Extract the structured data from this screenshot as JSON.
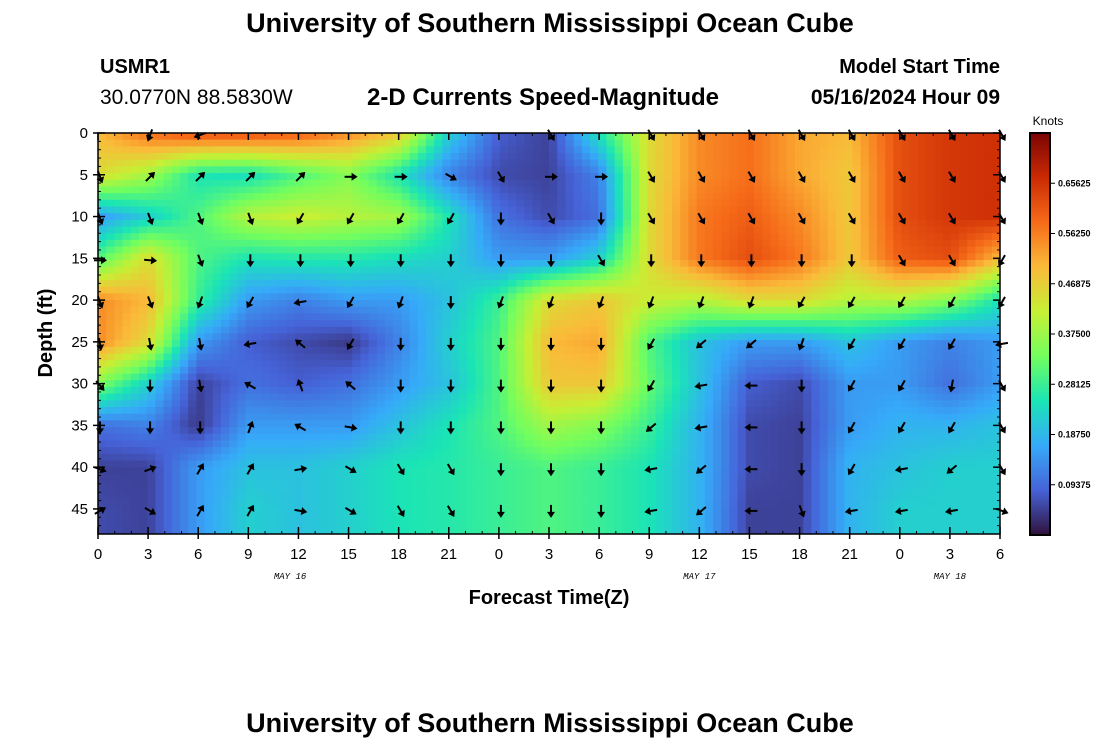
{
  "header": {
    "title": "University of Southern Mississippi Ocean Cube",
    "station_id": "USMR1",
    "coordinates": "30.0770N  88.5830W",
    "plot_title": "2-D Currents Speed-Magnitude",
    "model_start_label": "Model Start Time",
    "model_start_value": "05/16/2024 Hour 09"
  },
  "footer": {
    "title": "University of Southern Mississippi Ocean Cube"
  },
  "chart_data": {
    "type": "heatmap",
    "xlabel": "Forecast Time(Z)",
    "ylabel": "Depth (ft)",
    "x_ticks": [
      "0",
      "3",
      "6",
      "9",
      "12",
      "15",
      "18",
      "21",
      "0",
      "3",
      "6",
      "9",
      "12",
      "15",
      "18",
      "21",
      "0",
      "3",
      "6"
    ],
    "x_tick_hours": [
      0,
      3,
      6,
      9,
      12,
      15,
      18,
      21,
      24,
      27,
      30,
      33,
      36,
      39,
      42,
      45,
      48,
      51,
      54
    ],
    "xlim_hours": [
      0,
      54
    ],
    "date_labels": [
      {
        "text": "MAY 16",
        "hour": 11.5
      },
      {
        "text": "MAY 17",
        "hour": 36
      },
      {
        "text": "MAY 18",
        "hour": 51
      }
    ],
    "y_ticks": [
      0,
      5,
      10,
      15,
      20,
      25,
      30,
      35,
      40,
      45
    ],
    "ylim": [
      0,
      48
    ],
    "colorbar": {
      "label": "Knots",
      "ticks": [
        0.09375,
        0.1875,
        0.28125,
        0.375,
        0.46875,
        0.5625,
        0.65625
      ],
      "tick_labels": [
        "0.09375",
        "0.18750",
        "0.28125",
        "0.37500",
        "0.46875",
        "0.56250",
        "0.65625"
      ],
      "range": [
        0,
        0.75
      ],
      "colors": [
        "#30123b",
        "#4662d7",
        "#36aaf9",
        "#1ae4b6",
        "#72fe5e",
        "#c7ef34",
        "#faba39",
        "#f66b19",
        "#cb2a04",
        "#7a0403"
      ]
    },
    "speed_grid": {
      "x_hours": [
        0,
        3,
        6,
        9,
        12,
        15,
        18,
        21,
        24,
        27,
        30,
        33,
        36,
        39,
        42,
        45,
        48,
        51,
        54
      ],
      "depth_ft": [
        0,
        5,
        10,
        15,
        20,
        25,
        30,
        35,
        40,
        45
      ],
      "values": [
        [
          0.5,
          0.58,
          0.62,
          0.62,
          0.6,
          0.55,
          0.48,
          0.22,
          0.08,
          0.05,
          0.25,
          0.45,
          0.55,
          0.58,
          0.52,
          0.5,
          0.62,
          0.65,
          0.66
        ],
        [
          0.45,
          0.38,
          0.25,
          0.24,
          0.3,
          0.35,
          0.25,
          0.12,
          0.06,
          0.05,
          0.12,
          0.45,
          0.55,
          0.58,
          0.52,
          0.48,
          0.62,
          0.65,
          0.66
        ],
        [
          0.15,
          0.22,
          0.3,
          0.4,
          0.42,
          0.4,
          0.38,
          0.25,
          0.1,
          0.06,
          0.1,
          0.45,
          0.57,
          0.6,
          0.55,
          0.48,
          0.62,
          0.65,
          0.66
        ],
        [
          0.3,
          0.45,
          0.3,
          0.25,
          0.26,
          0.26,
          0.24,
          0.22,
          0.15,
          0.15,
          0.22,
          0.45,
          0.57,
          0.62,
          0.57,
          0.48,
          0.6,
          0.62,
          0.5
        ],
        [
          0.55,
          0.5,
          0.28,
          0.15,
          0.12,
          0.15,
          0.15,
          0.2,
          0.28,
          0.45,
          0.48,
          0.42,
          0.4,
          0.45,
          0.45,
          0.4,
          0.4,
          0.35,
          0.25
        ],
        [
          0.55,
          0.45,
          0.15,
          0.08,
          0.06,
          0.04,
          0.12,
          0.22,
          0.3,
          0.5,
          0.52,
          0.3,
          0.2,
          0.15,
          0.15,
          0.2,
          0.15,
          0.12,
          0.15
        ],
        [
          0.35,
          0.22,
          0.05,
          0.1,
          0.08,
          0.1,
          0.15,
          0.2,
          0.3,
          0.48,
          0.48,
          0.32,
          0.2,
          0.08,
          0.06,
          0.15,
          0.15,
          0.1,
          0.15
        ],
        [
          0.1,
          0.12,
          0.04,
          0.15,
          0.15,
          0.15,
          0.2,
          0.25,
          0.3,
          0.38,
          0.35,
          0.28,
          0.18,
          0.06,
          0.05,
          0.15,
          0.18,
          0.18,
          0.2
        ],
        [
          0.05,
          0.05,
          0.15,
          0.2,
          0.2,
          0.22,
          0.25,
          0.26,
          0.28,
          0.3,
          0.28,
          0.25,
          0.18,
          0.06,
          0.05,
          0.18,
          0.2,
          0.22,
          0.22
        ],
        [
          0.06,
          0.05,
          0.15,
          0.22,
          0.2,
          0.22,
          0.25,
          0.26,
          0.28,
          0.3,
          0.28,
          0.25,
          0.18,
          0.05,
          0.05,
          0.18,
          0.22,
          0.22,
          0.22
        ]
      ]
    },
    "vector_directions_deg": [
      [
        null,
        200,
        250,
        null,
        null,
        null,
        null,
        null,
        null,
        150,
        null,
        150,
        150,
        150,
        150,
        150,
        150,
        150,
        150
      ],
      [
        160,
        45,
        45,
        45,
        45,
        90,
        90,
        120,
        150,
        90,
        90,
        150,
        150,
        150,
        150,
        150,
        150,
        150,
        150
      ],
      [
        160,
        160,
        160,
        160,
        210,
        210,
        210,
        210,
        180,
        150,
        180,
        150,
        150,
        150,
        150,
        150,
        150,
        150,
        150
      ],
      [
        90,
        95,
        160,
        180,
        180,
        180,
        180,
        180,
        180,
        180,
        150,
        180,
        180,
        180,
        180,
        180,
        150,
        150,
        210
      ],
      [
        160,
        160,
        200,
        210,
        260,
        210,
        200,
        180,
        200,
        200,
        200,
        200,
        200,
        200,
        210,
        210,
        210,
        210,
        210
      ],
      [
        170,
        170,
        170,
        260,
        310,
        210,
        180,
        180,
        180,
        180,
        180,
        210,
        230,
        230,
        200,
        210,
        210,
        210,
        260
      ],
      [
        140,
        180,
        170,
        300,
        340,
        310,
        180,
        180,
        180,
        180,
        180,
        210,
        260,
        270,
        180,
        210,
        210,
        190,
        150
      ],
      [
        180,
        180,
        180,
        20,
        300,
        100,
        180,
        180,
        180,
        180,
        180,
        230,
        260,
        270,
        180,
        210,
        210,
        210,
        150
      ],
      [
        110,
        70,
        30,
        30,
        80,
        120,
        150,
        150,
        180,
        180,
        180,
        260,
        230,
        270,
        180,
        210,
        260,
        230,
        150
      ],
      [
        60,
        120,
        30,
        30,
        100,
        120,
        150,
        150,
        180,
        180,
        180,
        260,
        230,
        270,
        160,
        260,
        260,
        260,
        110
      ]
    ]
  }
}
